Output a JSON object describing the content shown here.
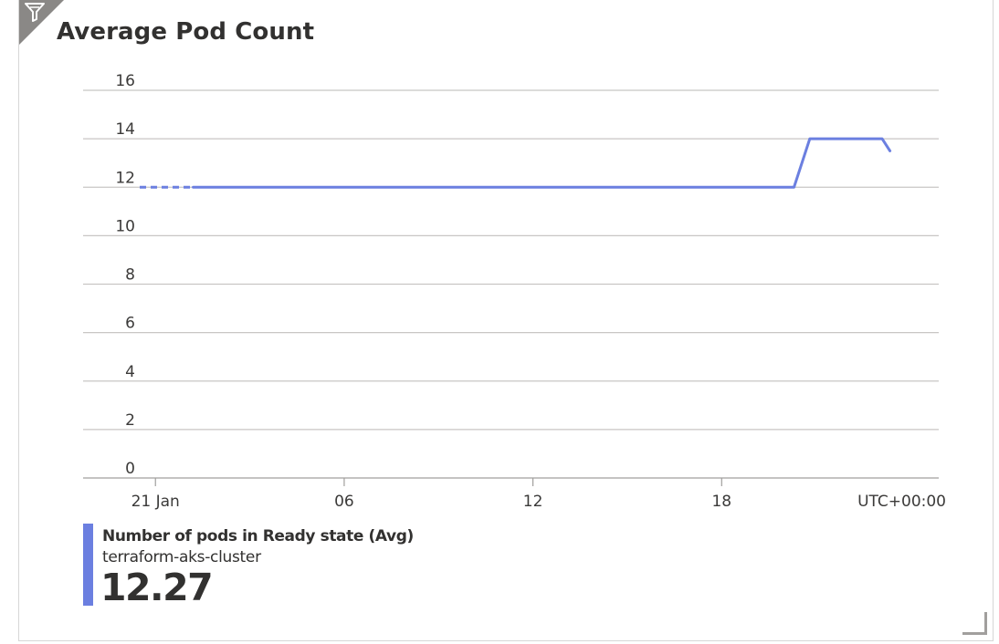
{
  "tile": {
    "title": "Average Pod Count",
    "filter_icon": "filter-icon",
    "resize_icon": "resize-handle-icon"
  },
  "colors": {
    "series": "#6b7fe0",
    "grid": "#c8c6c4",
    "flag": "#8a8886"
  },
  "chart_data": {
    "type": "line",
    "title": "Average Pod Count",
    "xlabel": "",
    "ylabel": "",
    "timezone_label": "UTC+00:00",
    "ylim": [
      0,
      16
    ],
    "y_ticks": [
      0,
      2,
      4,
      6,
      8,
      10,
      12,
      14,
      16
    ],
    "x_ticks": [
      {
        "hour": 0,
        "label": "21 Jan"
      },
      {
        "hour": 6,
        "label": "06"
      },
      {
        "hour": 12,
        "label": "12"
      },
      {
        "hour": 18,
        "label": "18"
      }
    ],
    "xlim_hours": [
      -2.3,
      24.9
    ],
    "grid": true,
    "series": [
      {
        "name": "Number of pods in Ready state (Avg)",
        "resource": "terraform-aks-cluster",
        "summary_value": "12.27",
        "dashed_segment": [
          [
            -0.5,
            12
          ],
          [
            1.2,
            12
          ]
        ],
        "points": [
          [
            1.2,
            12
          ],
          [
            20.3,
            12
          ],
          [
            20.8,
            14
          ],
          [
            23.1,
            14
          ],
          [
            23.35,
            13.5
          ]
        ]
      }
    ]
  }
}
